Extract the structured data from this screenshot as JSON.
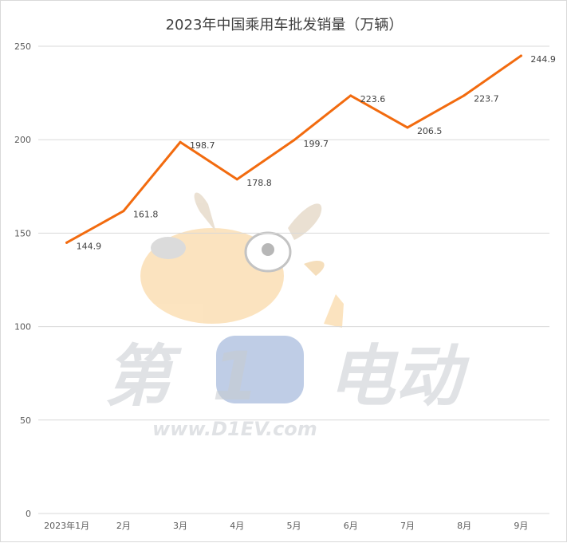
{
  "chart_data": {
    "type": "line",
    "title": "2023年中国乘用车批发销量（万辆）",
    "xlabel": "",
    "ylabel": "",
    "categories": [
      "2023年1月",
      "2月",
      "3月",
      "4月",
      "5月",
      "6月",
      "7月",
      "8月",
      "9月"
    ],
    "series": [
      {
        "values": [
          144.9,
          161.8,
          198.7,
          178.8,
          199.7,
          223.6,
          206.5,
          223.7,
          244.9
        ],
        "color": "#f26b0f"
      }
    ],
    "ylim": [
      0,
      250
    ],
    "yticks": [
      0,
      50,
      100,
      150,
      200,
      250
    ],
    "grid": true,
    "legend": "none",
    "data_labels": true
  },
  "watermark": {
    "text_cn": "第1电动",
    "url": "www.D1EV.com"
  },
  "colors": {
    "line": "#f26b0f",
    "grid": "#d9d9d9",
    "axis_text": "#595959",
    "title": "#404040",
    "watermark": "#c8ccd0"
  }
}
